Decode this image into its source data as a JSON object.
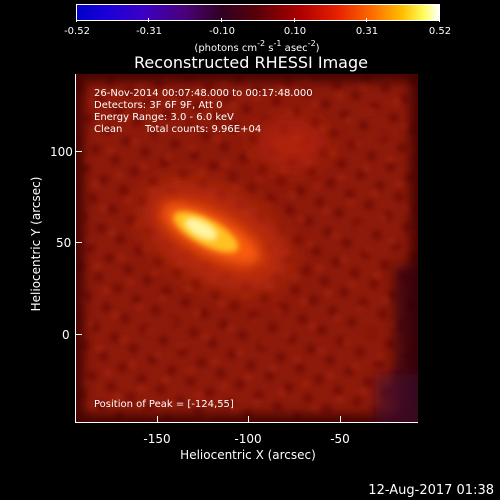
{
  "colorbar": {
    "ticks": [
      "-0.52",
      "-0.31",
      "-0.10",
      "0.10",
      "0.31",
      "0.52"
    ],
    "units_prefix": "(photons cm",
    "units_exp1": "-2",
    "units_mid1": " s",
    "units_exp2": "-1",
    "units_mid2": " asec",
    "units_exp3": "-2",
    "units_suffix": ")"
  },
  "title": "Reconstructed RHESSI Image",
  "info": {
    "time_range": "26-Nov-2014 00:07:48.000 to 00:17:48.000",
    "detectors": "Detectors: 3F 6F 9F, Att 0",
    "energy_range": "Energy Range: 3.0 - 6.0 keV",
    "clean_label": "Clean",
    "total_counts": "Total counts: 9.96E+04"
  },
  "peak_position": "Position of Peak = [-124,55]",
  "axes": {
    "xlabel": "Heliocentric X (arcsec)",
    "ylabel": "Heliocentric Y (arcsec)",
    "x_ticks": [
      "-150",
      "-100",
      "-50"
    ],
    "y_ticks": [
      "100",
      "50",
      "0"
    ]
  },
  "footer_timestamp": "12-Aug-2017 01:38",
  "colors": {
    "background": "#000000",
    "image_base": "#8a1608",
    "peak": "#fff4a0"
  }
}
